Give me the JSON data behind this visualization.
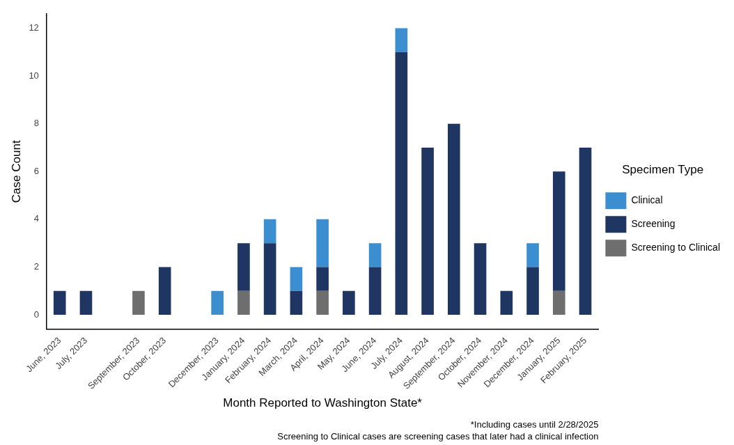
{
  "chart_data": {
    "type": "bar",
    "stacked": true,
    "xlabel": "Month Reported to Washington State*",
    "ylabel": "Case Count",
    "legend_title": "Specimen Type",
    "categories": [
      "June, 2023",
      "July, 2023",
      null,
      "September, 2023",
      "October, 2023",
      null,
      "December, 2023",
      "January, 2024",
      "February, 2024",
      "March, 2024",
      "April, 2024",
      "May, 2024",
      "June, 2024",
      "July, 2024",
      "August, 2024",
      "September, 2024",
      "October, 2024",
      "November, 2024",
      "December, 2024",
      "January, 2025",
      "February, 2025"
    ],
    "series": [
      {
        "name": "Screening to Clinical",
        "color": "#6e6e6e",
        "values": [
          null,
          null,
          null,
          1,
          null,
          null,
          null,
          1,
          null,
          null,
          1,
          null,
          null,
          null,
          null,
          null,
          null,
          null,
          null,
          1,
          null
        ]
      },
      {
        "name": "Screening",
        "color": "#1f3562",
        "values": [
          1,
          1,
          null,
          null,
          2,
          null,
          null,
          2,
          3,
          1,
          1,
          1,
          2,
          11,
          7,
          8,
          3,
          1,
          2,
          5,
          7
        ]
      },
      {
        "name": "Clinical",
        "color": "#3b8fd1",
        "values": [
          null,
          null,
          null,
          null,
          null,
          null,
          1,
          null,
          1,
          1,
          2,
          null,
          1,
          1,
          null,
          null,
          null,
          null,
          1,
          null,
          null
        ]
      }
    ],
    "ylim": [
      -0.6,
      12.6
    ],
    "yticks": [
      0,
      2,
      4,
      6,
      8,
      10,
      12
    ],
    "grid": false,
    "legend": "right",
    "annotations": [
      "*Including cases until 2/28/2025",
      "Screening to Clinical cases are screening cases that later had a clinical infection"
    ]
  }
}
